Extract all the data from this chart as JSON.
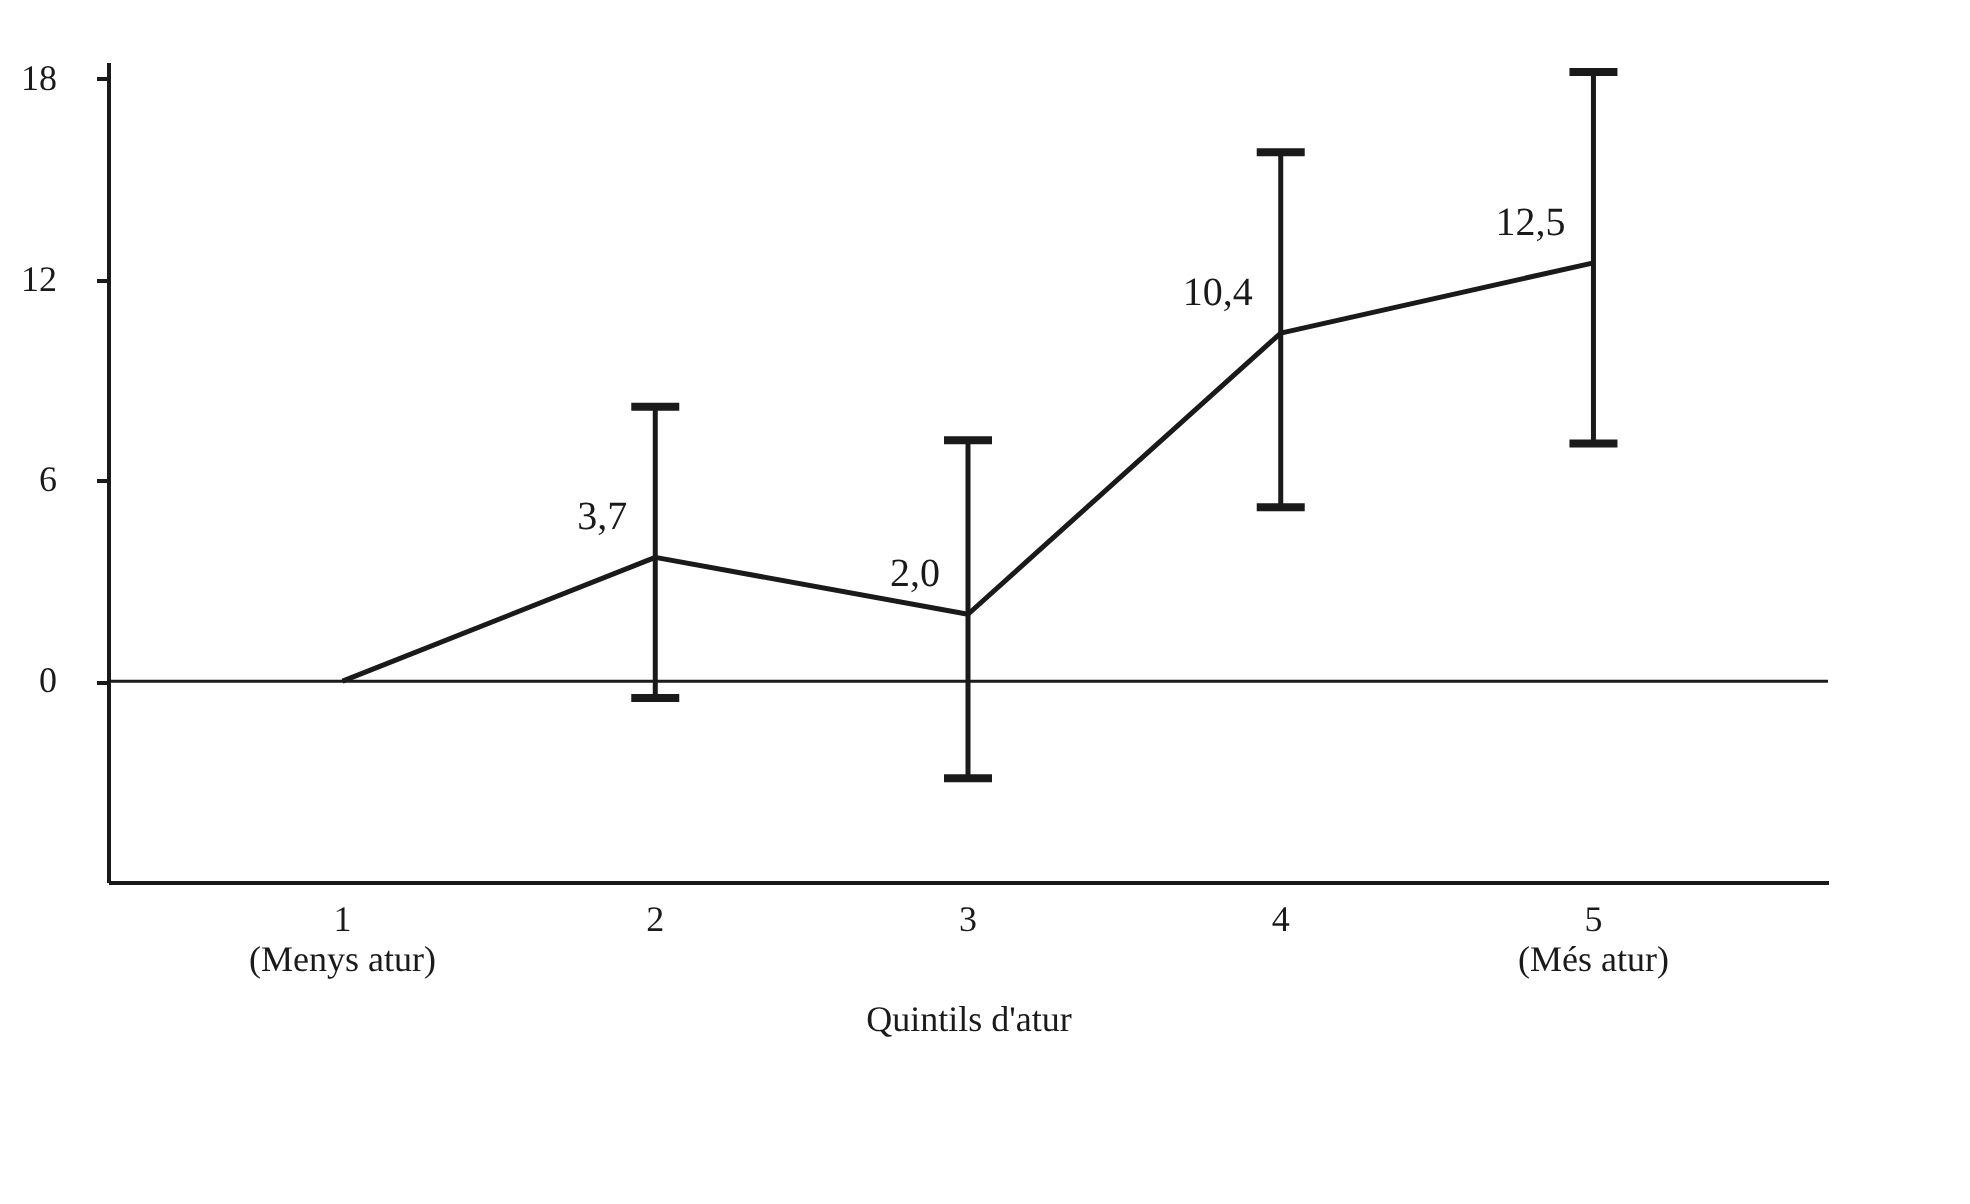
{
  "chart_data": {
    "type": "line",
    "xlabel": "Quintils d'atur",
    "categories": [
      "1\n(Menys atur)",
      "2",
      "3",
      "4",
      "5\n(Més atur)"
    ],
    "series": [
      {
        "color": "#1a1a1a",
        "values": [
          0,
          3.7,
          2.0,
          10.4,
          12.5
        ],
        "errors": [
          null,
          [
            -0.5,
            8.2
          ],
          [
            -2.9,
            7.2
          ],
          [
            5.2,
            15.8
          ],
          [
            7.1,
            18.2
          ]
        ],
        "value_labels": [
          null,
          "3,7",
          "2,0",
          "10,4",
          "12,5"
        ]
      }
    ],
    "ylim": [
      -6,
      18.5
    ],
    "yticks": [
      0,
      6,
      12,
      18
    ],
    "ref_lines": [
      {
        "axis": "y",
        "value": 0,
        "color": "#1a1a1a"
      }
    ],
    "line_style": "solid"
  }
}
